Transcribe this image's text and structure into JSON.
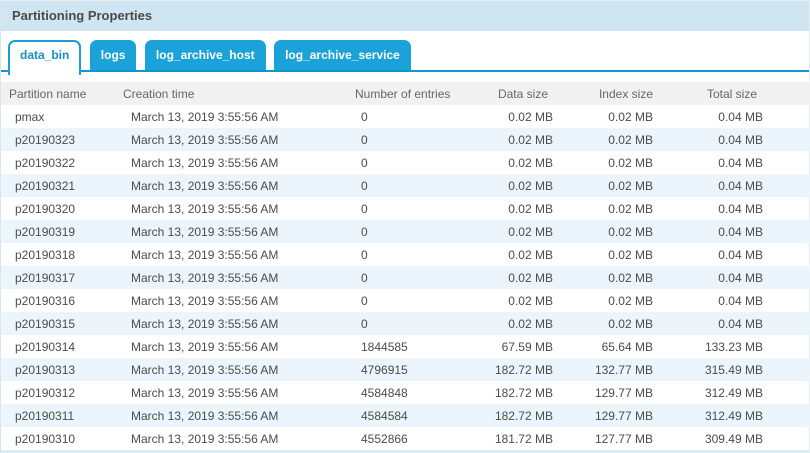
{
  "panel": {
    "title": "Partitioning Properties"
  },
  "tabs": [
    {
      "label": "data_bin",
      "active": true
    },
    {
      "label": "logs",
      "active": false
    },
    {
      "label": "log_archive_host",
      "active": false
    },
    {
      "label": "log_archive_service",
      "active": false
    }
  ],
  "table": {
    "columns": [
      "Partition name",
      "Creation time",
      "Number of entries",
      "Data size",
      "Index size",
      "Total size"
    ],
    "rows": [
      [
        "pmax",
        "March 13, 2019 3:55:56 AM",
        "0",
        "0.02 MB",
        "0.02 MB",
        "0.04 MB"
      ],
      [
        "p20190323",
        "March 13, 2019 3:55:56 AM",
        "0",
        "0.02 MB",
        "0.02 MB",
        "0.04 MB"
      ],
      [
        "p20190322",
        "March 13, 2019 3:55:56 AM",
        "0",
        "0.02 MB",
        "0.02 MB",
        "0.04 MB"
      ],
      [
        "p20190321",
        "March 13, 2019 3:55:56 AM",
        "0",
        "0.02 MB",
        "0.02 MB",
        "0.04 MB"
      ],
      [
        "p20190320",
        "March 13, 2019 3:55:56 AM",
        "0",
        "0.02 MB",
        "0.02 MB",
        "0.04 MB"
      ],
      [
        "p20190319",
        "March 13, 2019 3:55:56 AM",
        "0",
        "0.02 MB",
        "0.02 MB",
        "0.04 MB"
      ],
      [
        "p20190318",
        "March 13, 2019 3:55:56 AM",
        "0",
        "0.02 MB",
        "0.02 MB",
        "0.04 MB"
      ],
      [
        "p20190317",
        "March 13, 2019 3:55:56 AM",
        "0",
        "0.02 MB",
        "0.02 MB",
        "0.04 MB"
      ],
      [
        "p20190316",
        "March 13, 2019 3:55:56 AM",
        "0",
        "0.02 MB",
        "0.02 MB",
        "0.04 MB"
      ],
      [
        "p20190315",
        "March 13, 2019 3:55:56 AM",
        "0",
        "0.02 MB",
        "0.02 MB",
        "0.04 MB"
      ],
      [
        "p20190314",
        "March 13, 2019 3:55:56 AM",
        "1844585",
        "67.59 MB",
        "65.64 MB",
        "133.23 MB"
      ],
      [
        "p20190313",
        "March 13, 2019 3:55:56 AM",
        "4796915",
        "182.72 MB",
        "132.77 MB",
        "315.49 MB"
      ],
      [
        "p20190312",
        "March 13, 2019 3:55:56 AM",
        "4584848",
        "182.72 MB",
        "129.77 MB",
        "312.49 MB"
      ],
      [
        "p20190311",
        "March 13, 2019 3:55:56 AM",
        "4584584",
        "182.72 MB",
        "129.77 MB",
        "312.49 MB"
      ],
      [
        "p20190310",
        "March 13, 2019 3:55:56 AM",
        "4552866",
        "181.72 MB",
        "127.77 MB",
        "309.49 MB"
      ]
    ]
  },
  "colors": {
    "accent_blue": "#18a0d6",
    "tab_underline": "#1196ce",
    "title_bar_bg": "#cfe5f2",
    "header_bg": "#f1f1f1",
    "row_alt_bg": "#ebf5fb",
    "active_tab_text": "#1590c8",
    "body_text": "#4c4c4c"
  }
}
